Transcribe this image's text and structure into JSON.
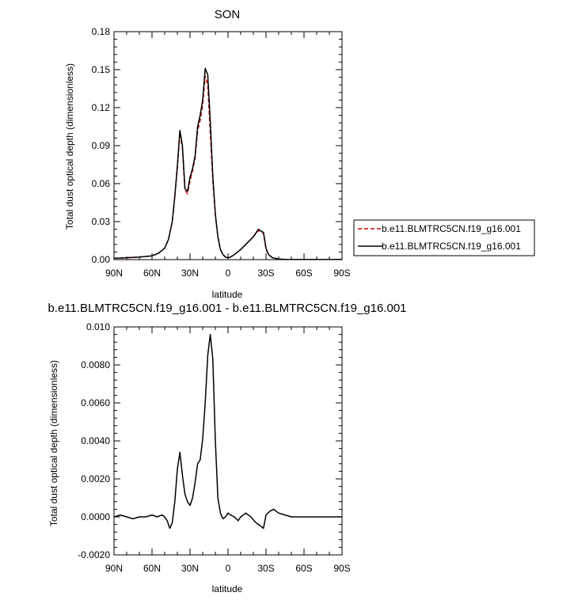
{
  "chart_data": [
    {
      "type": "line",
      "title": "SON",
      "xlabel": "latitude",
      "ylabel": "Total dust optical depth (dimensionless)",
      "xlim": [
        90,
        -90
      ],
      "ylim": [
        0,
        0.18
      ],
      "x_ticks": [
        90,
        60,
        30,
        0,
        -30,
        -60,
        -90
      ],
      "x_tick_labels": [
        "90N",
        "60N",
        "30N",
        "0",
        "30S",
        "60S",
        "90S"
      ],
      "y_ticks": [
        0,
        0.03,
        0.06,
        0.09,
        0.12,
        0.15,
        0.18
      ],
      "y_tick_labels": [
        "0.00",
        "0.03",
        "0.06",
        "0.09",
        "0.12",
        "0.15",
        "0.18"
      ],
      "legend_position": "right",
      "series": [
        {
          "name": "b.e11.BLMTRC5CN.f19_g16.001",
          "color": "#cc0000",
          "dash": "dashed",
          "x": [
            90,
            80,
            70,
            60,
            55,
            50,
            47,
            44,
            42,
            40,
            38,
            36,
            34,
            32,
            30,
            28,
            26,
            24,
            22,
            20,
            18,
            16,
            14,
            12,
            10,
            8,
            6,
            4,
            2,
            0,
            -2,
            -5,
            -10,
            -15,
            -20,
            -24,
            -26,
            -28,
            -30,
            -32,
            -35,
            -40,
            -45,
            -50,
            -60,
            -70,
            -80,
            -90
          ],
          "y": [
            0.001,
            0.0015,
            0.002,
            0.003,
            0.005,
            0.009,
            0.016,
            0.03,
            0.05,
            0.072,
            0.1,
            0.088,
            0.055,
            0.052,
            0.062,
            0.07,
            0.08,
            0.102,
            0.11,
            0.122,
            0.145,
            0.138,
            0.1,
            0.062,
            0.035,
            0.018,
            0.008,
            0.004,
            0.002,
            0.0015,
            0.002,
            0.004,
            0.008,
            0.013,
            0.018,
            0.023,
            0.022,
            0.021,
            0.008,
            0.004,
            0.0015,
            0.0005,
            0.0002,
            0.0001,
            0.0001,
            0.0001,
            0.0001,
            0.0001
          ]
        },
        {
          "name": "b.e11.BLMTRC5CN.f19_g16.001",
          "color": "#000000",
          "dash": "solid",
          "x": [
            90,
            80,
            70,
            60,
            55,
            50,
            47,
            44,
            42,
            40,
            38,
            36,
            34,
            32,
            30,
            28,
            26,
            24,
            22,
            20,
            18,
            16,
            14,
            12,
            10,
            8,
            6,
            4,
            2,
            0,
            -2,
            -5,
            -10,
            -15,
            -20,
            -24,
            -26,
            -28,
            -30,
            -32,
            -35,
            -40,
            -45,
            -50,
            -60,
            -70,
            -80,
            -90
          ],
          "y": [
            0.001,
            0.0015,
            0.002,
            0.003,
            0.005,
            0.009,
            0.016,
            0.03,
            0.05,
            0.074,
            0.102,
            0.09,
            0.056,
            0.054,
            0.065,
            0.072,
            0.082,
            0.105,
            0.114,
            0.126,
            0.151,
            0.146,
            0.109,
            0.066,
            0.036,
            0.018,
            0.008,
            0.004,
            0.002,
            0.0015,
            0.002,
            0.004,
            0.008,
            0.013,
            0.018,
            0.024,
            0.0225,
            0.0215,
            0.009,
            0.004,
            0.0015,
            0.0005,
            0.0002,
            0.0001,
            0.0001,
            0.0001,
            0.0001,
            0.0001
          ]
        }
      ]
    },
    {
      "type": "line",
      "title": "b.e11.BLMTRC5CN.f19_g16.001 - b.e11.BLMTRC5CN.f19_g16.001",
      "xlabel": "latitude",
      "ylabel": "Total dust optical depth (dimensionless)",
      "xlim": [
        90,
        -90
      ],
      "ylim": [
        -0.002,
        0.01
      ],
      "x_ticks": [
        90,
        60,
        30,
        0,
        -30,
        -60,
        -90
      ],
      "x_tick_labels": [
        "90N",
        "60N",
        "30N",
        "0",
        "30S",
        "60S",
        "90S"
      ],
      "y_ticks": [
        -0.002,
        0,
        0.002,
        0.004,
        0.006,
        0.008,
        0.01
      ],
      "y_tick_labels": [
        "-0.0020",
        "0.0000",
        "0.0020",
        "0.0040",
        "0.0060",
        "0.0080",
        "0.010"
      ],
      "series": [
        {
          "color": "#000000",
          "dash": "solid",
          "x": [
            90,
            85,
            80,
            75,
            70,
            65,
            60,
            56,
            52,
            50,
            48,
            46,
            44,
            42,
            40,
            38,
            36,
            34,
            32,
            30,
            28,
            26,
            24,
            22,
            20,
            18,
            16,
            14,
            12,
            10,
            8,
            6,
            4,
            2,
            0,
            -2,
            -5,
            -8,
            -10,
            -14,
            -18,
            -22,
            -26,
            -28,
            -30,
            -33,
            -36,
            -40,
            -45,
            -50,
            -60,
            -70,
            -80,
            -90
          ],
          "y": [
            0.0,
            0.0001,
            0.0,
            -0.0001,
            0.0,
            0.0,
            0.0001,
            0.0,
            0.0001,
            0.0,
            -0.0002,
            -0.0006,
            -0.0003,
            0.0008,
            0.0025,
            0.0034,
            0.0022,
            0.0012,
            0.0008,
            0.0006,
            0.001,
            0.0018,
            0.0028,
            0.003,
            0.0041,
            0.006,
            0.0085,
            0.0096,
            0.0083,
            0.004,
            0.001,
            0.0002,
            -0.0001,
            0.0,
            0.0002,
            0.0001,
            0.0,
            -0.0002,
            0.0,
            0.0002,
            0.0,
            -0.0003,
            -0.0005,
            -0.0006,
            0.0001,
            0.0003,
            0.0004,
            0.0002,
            0.0001,
            0.0,
            0.0,
            0.0,
            0.0,
            0.0
          ]
        }
      ]
    }
  ]
}
